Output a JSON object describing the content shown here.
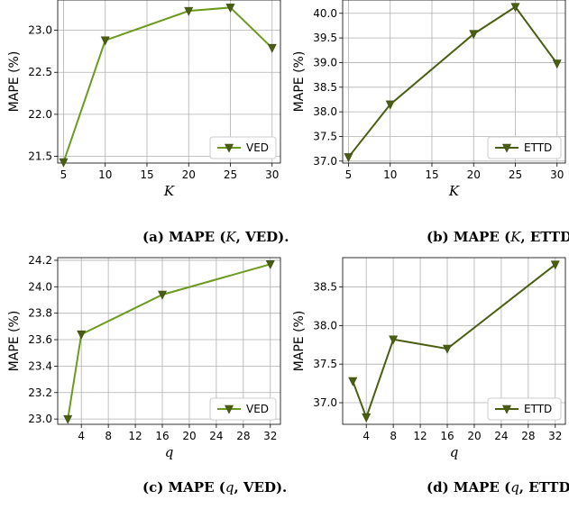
{
  "chart_data": [
    {
      "type": "line",
      "caption": {
        "prefix": "(a) MAPE (",
        "var": "K",
        "suffix": ", VED)."
      },
      "xlabel": "K",
      "ylabel": "MAPE (%)",
      "xlim": [
        4.3,
        31.0
      ],
      "ylim": [
        21.42,
        23.36
      ],
      "xticks": [
        5,
        10,
        15,
        20,
        25,
        30
      ],
      "yticks": [
        21.5,
        22.0,
        22.5,
        23.0
      ],
      "ytick_labels": [
        "21.5",
        "22.0",
        "22.5",
        "23.0"
      ],
      "series": [
        {
          "name": "VED",
          "color": "#6b9a1f",
          "x": [
            5,
            10,
            20,
            25,
            30
          ],
          "y": [
            21.43,
            22.88,
            23.23,
            23.27,
            22.79
          ]
        }
      ],
      "legend": "lower-right",
      "grid": true
    },
    {
      "type": "line",
      "caption": {
        "prefix": "(b) MAPE (",
        "var": "K",
        "suffix": ", ETTD)."
      },
      "xlabel": "K",
      "ylabel": "MAPE (%)",
      "xlim": [
        4.3,
        31.0
      ],
      "ylim": [
        36.96,
        40.27
      ],
      "xticks": [
        5,
        10,
        15,
        20,
        25,
        30
      ],
      "yticks": [
        37.0,
        37.5,
        38.0,
        38.5,
        39.0,
        39.5,
        40.0
      ],
      "ytick_labels": [
        "37.0",
        "37.5",
        "38.0",
        "38.5",
        "39.0",
        "39.5",
        "40.0"
      ],
      "series": [
        {
          "name": "ETTD",
          "color": "#4a5e12",
          "x": [
            5,
            10,
            20,
            25,
            30
          ],
          "y": [
            37.08,
            38.15,
            39.58,
            40.13,
            38.98
          ]
        }
      ],
      "legend": "lower-right",
      "grid": true
    },
    {
      "type": "line",
      "caption": {
        "prefix": "(c) MAPE (",
        "var": "q",
        "suffix": ", VED)."
      },
      "xlabel": "q",
      "ylabel": "MAPE (%)",
      "xlim": [
        0.5,
        33.5
      ],
      "ylim": [
        22.96,
        24.22
      ],
      "xticks": [
        4,
        8,
        12,
        16,
        20,
        24,
        28,
        32
      ],
      "yticks": [
        23.0,
        23.2,
        23.4,
        23.6,
        23.8,
        24.0,
        24.2
      ],
      "ytick_labels": [
        "23.0",
        "23.2",
        "23.4",
        "23.6",
        "23.8",
        "24.0",
        "24.2"
      ],
      "series": [
        {
          "name": "VED",
          "color": "#6b9a1f",
          "x": [
            2,
            4,
            16,
            32
          ],
          "y": [
            23.0,
            23.64,
            23.94,
            24.17
          ]
        }
      ],
      "legend": "lower-right",
      "grid": true
    },
    {
      "type": "line",
      "caption": {
        "prefix": "(d) MAPE (",
        "var": "q",
        "suffix": ", ETTD)."
      },
      "xlabel": "q",
      "ylabel": "MAPE (%)",
      "xlim": [
        0.5,
        33.5
      ],
      "ylim": [
        36.72,
        38.88
      ],
      "xticks": [
        4,
        8,
        12,
        16,
        20,
        24,
        28,
        32
      ],
      "yticks": [
        37.0,
        37.5,
        38.0,
        38.5
      ],
      "ytick_labels": [
        "37.0",
        "37.5",
        "38.0",
        "38.5"
      ],
      "series": [
        {
          "name": "ETTD",
          "color": "#4a5e12",
          "x": [
            2,
            4,
            8,
            16,
            32
          ],
          "y": [
            37.28,
            36.81,
            37.82,
            37.7,
            38.79
          ]
        }
      ],
      "legend": "lower-right",
      "grid": true
    }
  ]
}
